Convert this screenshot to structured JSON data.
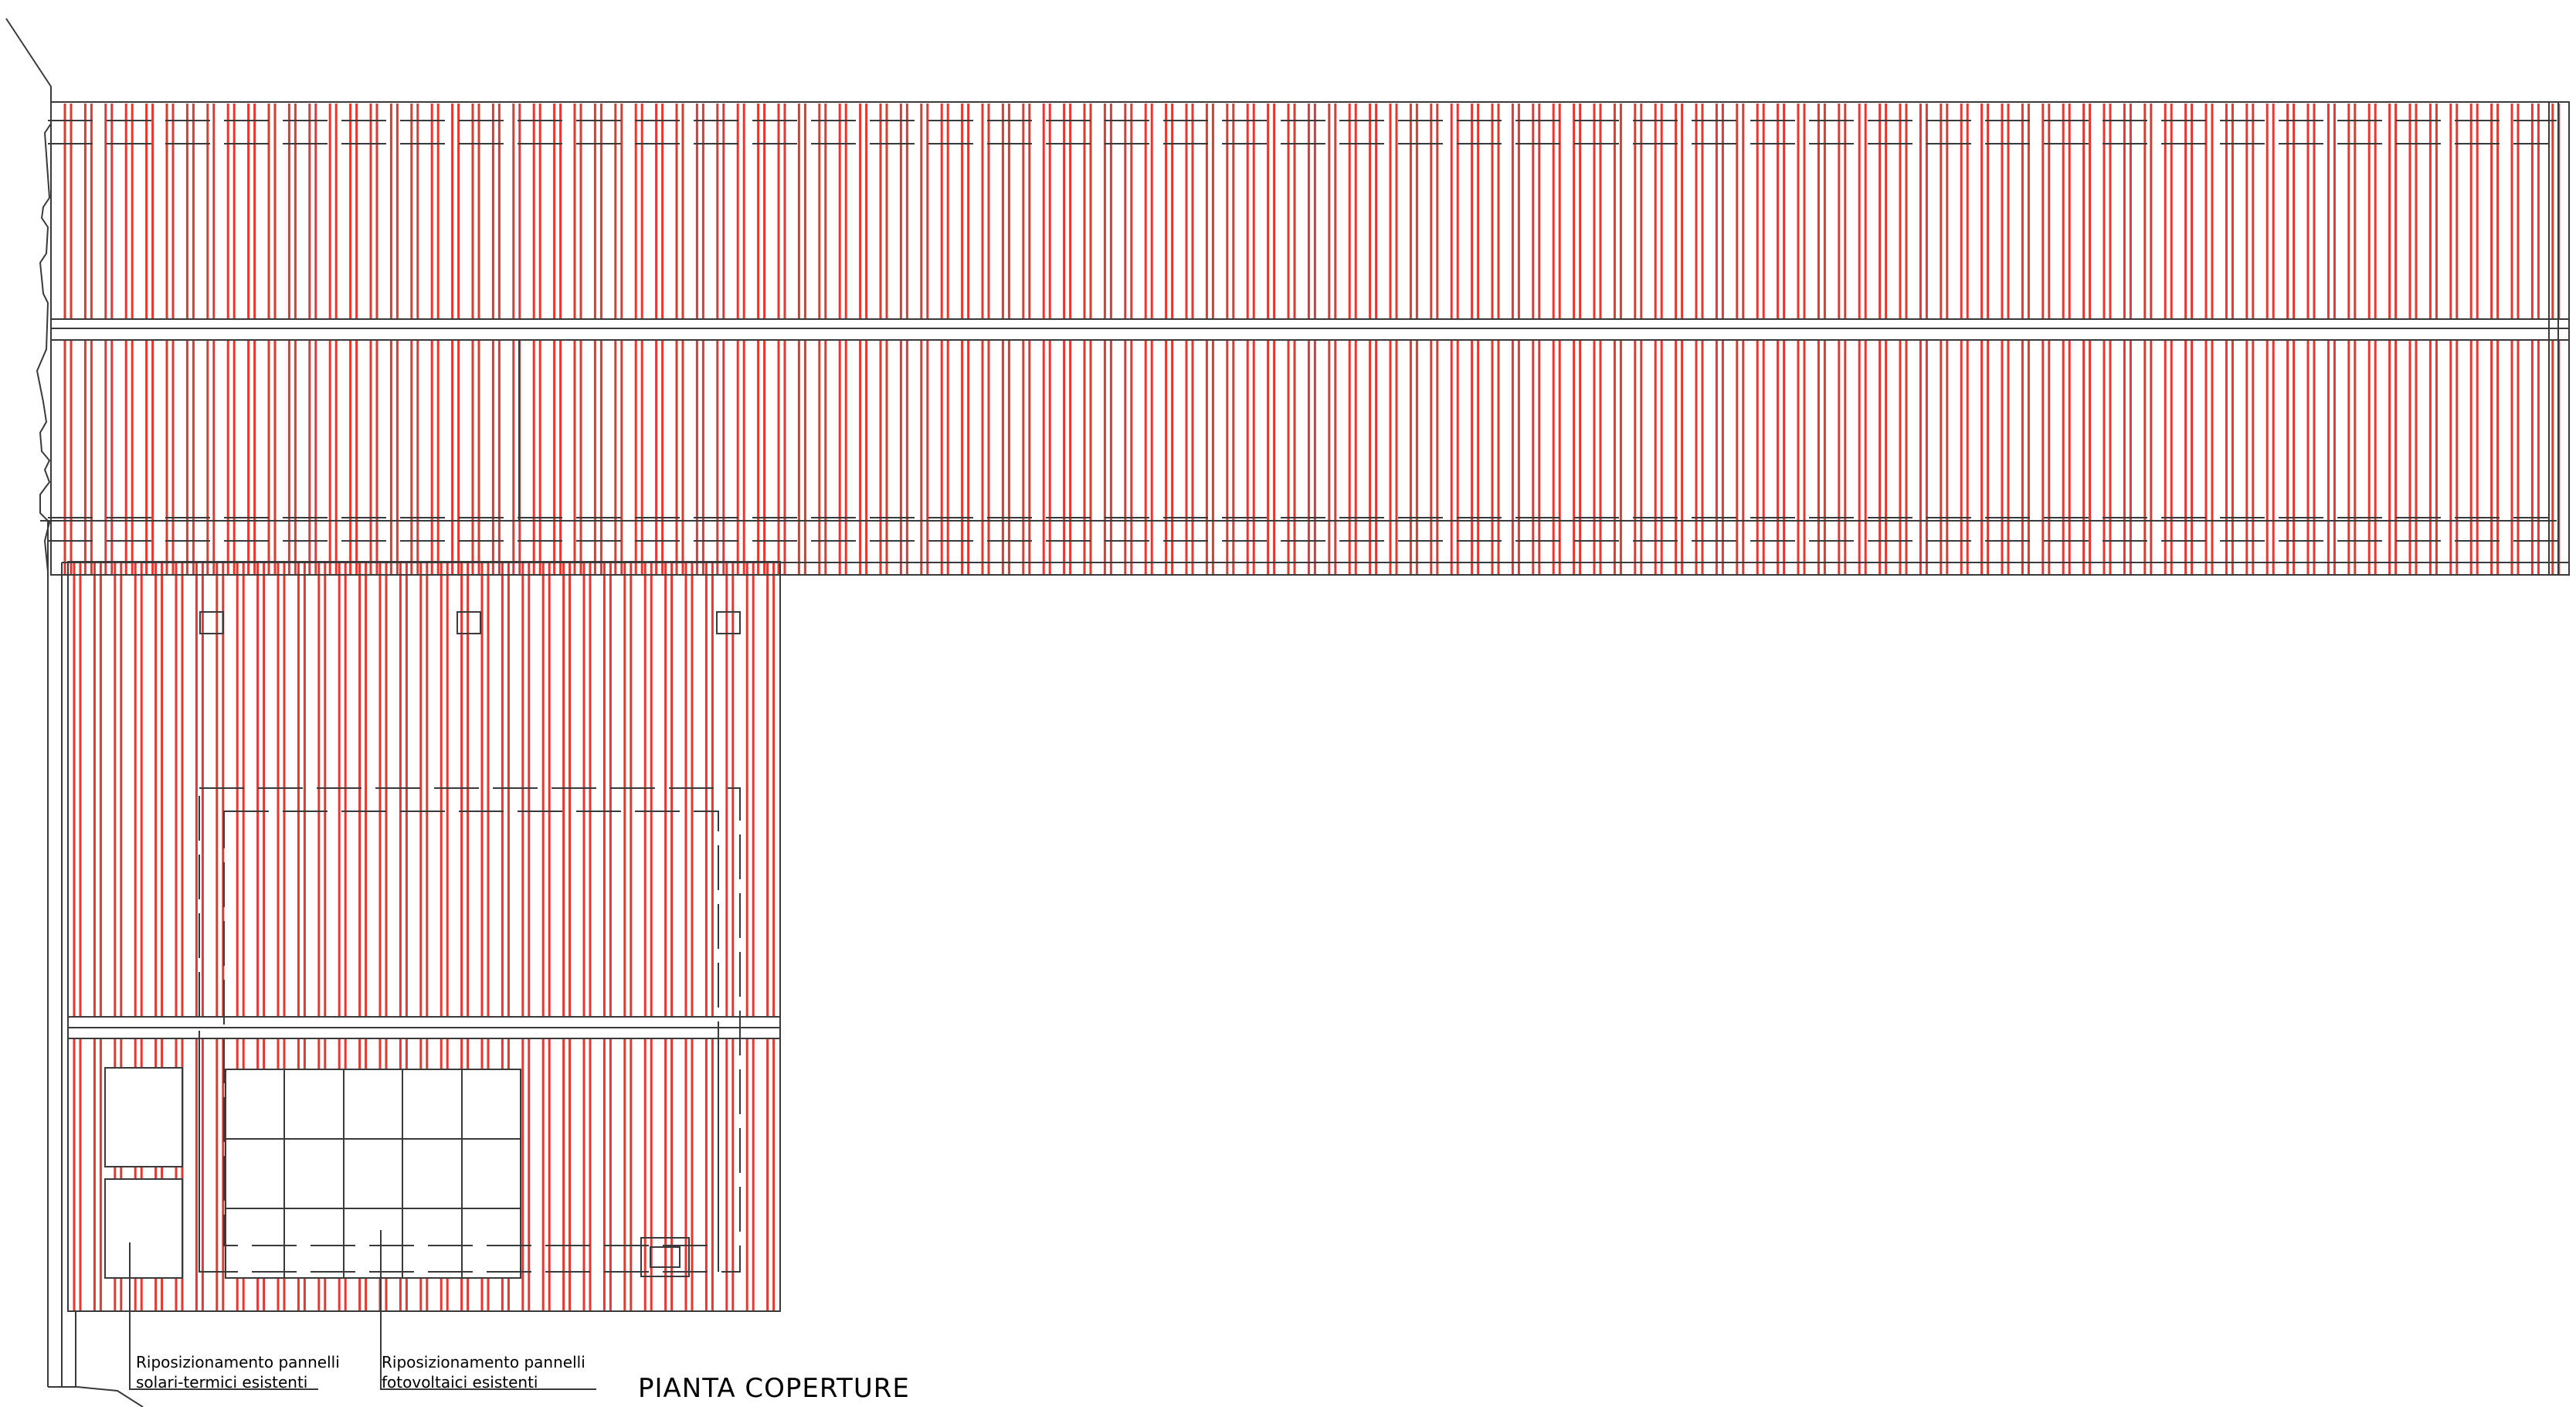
{
  "drawing": {
    "title": "PIANTA COPERTURE",
    "notes": {
      "solar_thermal": {
        "line1": "Riposizionamento pannelli",
        "line2": "solari-termici esistenti"
      },
      "photovoltaic": {
        "line1": "Riposizionamento pannelli",
        "line2": "fotovoltaici esistenti"
      }
    }
  },
  "colors": {
    "roof_seam": "#e8372f",
    "linework": "#3a3a3a",
    "background": "#ffffff"
  }
}
